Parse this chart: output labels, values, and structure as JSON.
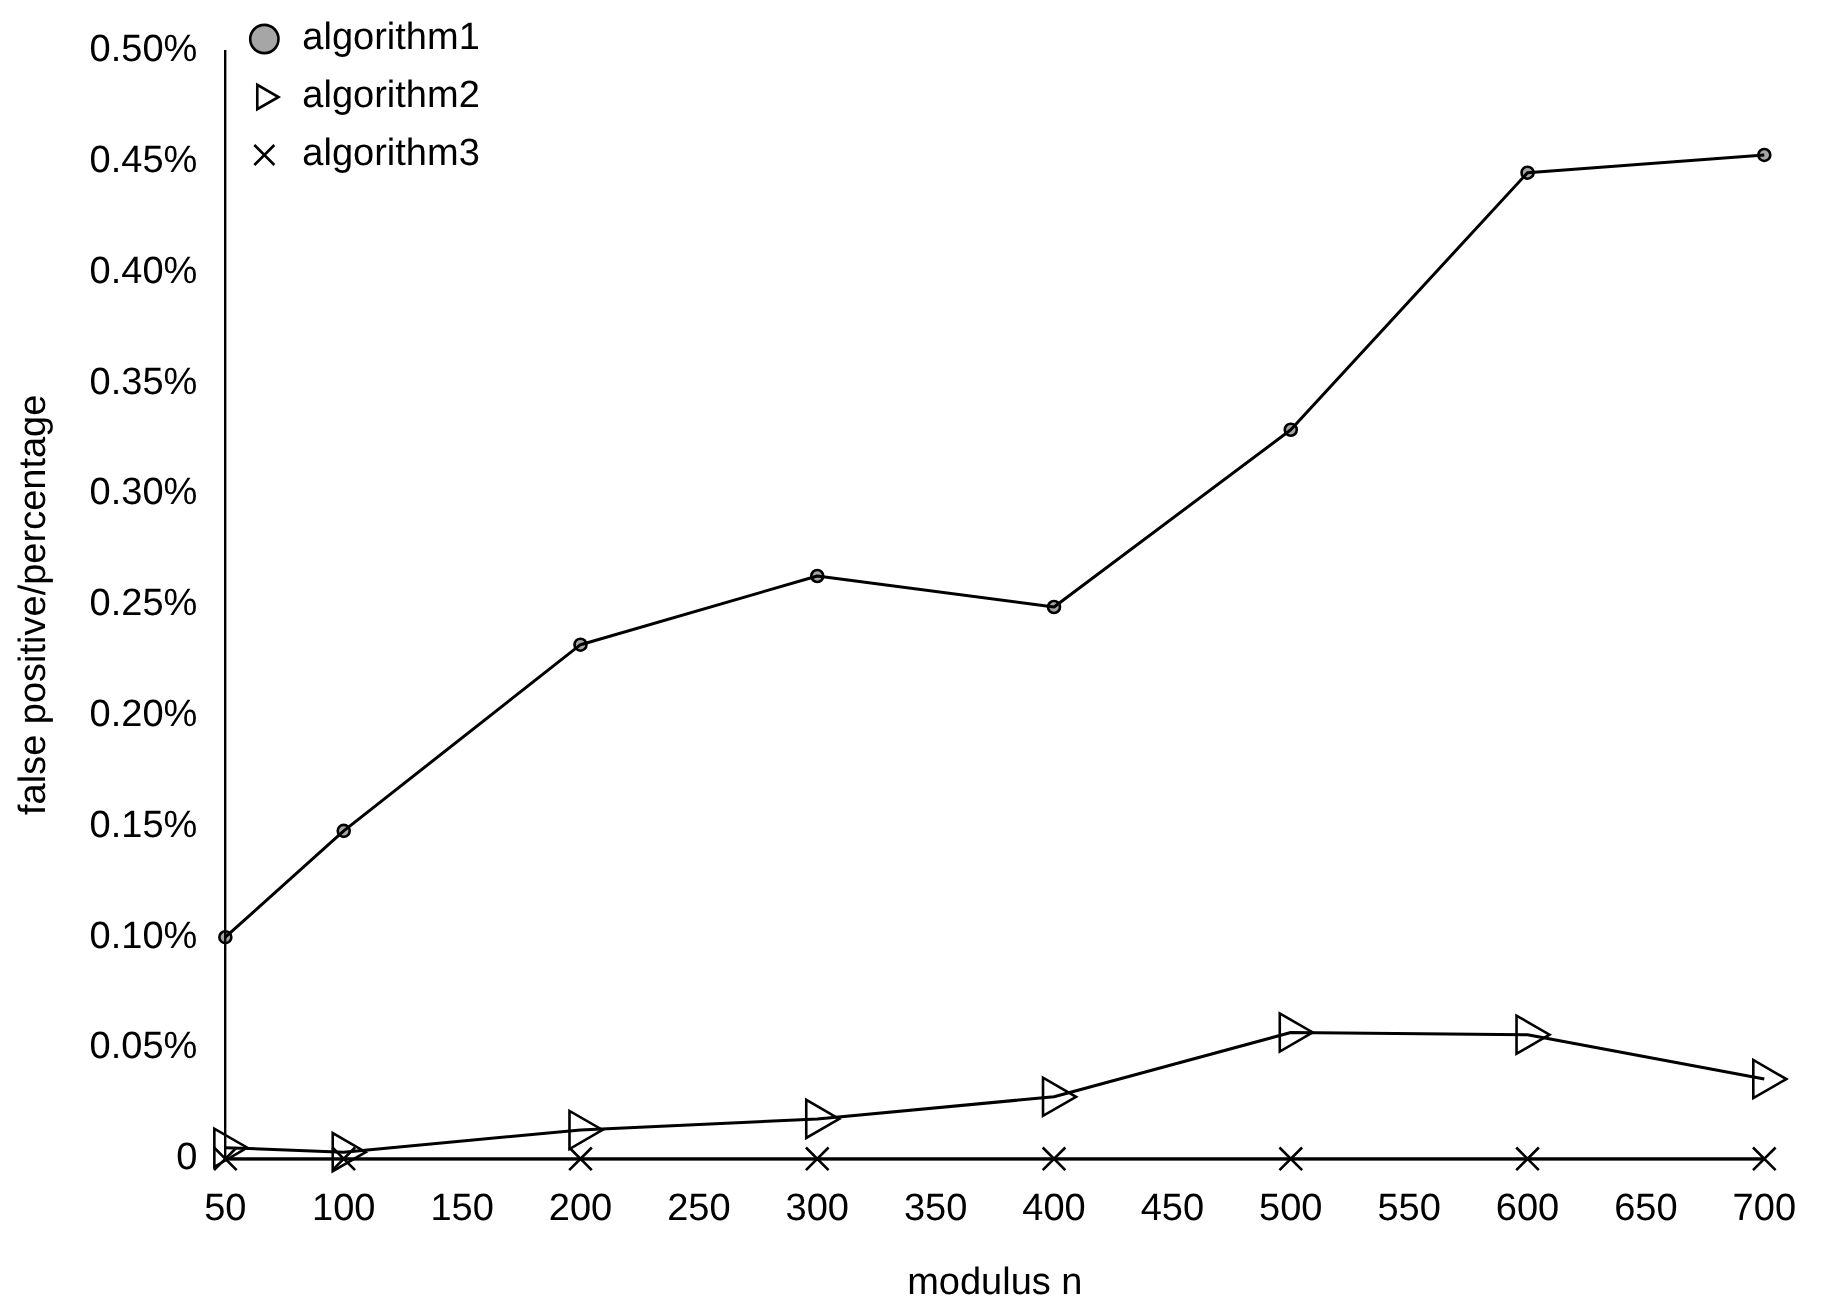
{
  "chart_data": {
    "type": "line",
    "xlabel": "modulus n",
    "ylabel": "false positive/percentage",
    "x": [
      50,
      100,
      200,
      300,
      400,
      500,
      600,
      700
    ],
    "series": [
      {
        "name": "algorithm1",
        "color": "#000000",
        "marker": "circle",
        "values": [
          0.1,
          0.148,
          0.232,
          0.263,
          0.249,
          0.329,
          0.445,
          0.453
        ]
      },
      {
        "name": "algorithm2",
        "color": "#000000",
        "marker": "triangle",
        "values": [
          0.005,
          0.003,
          0.013,
          0.018,
          0.028,
          0.057,
          0.056,
          0.036
        ]
      },
      {
        "name": "algorithm3",
        "color": "#000000",
        "marker": "cross",
        "values": [
          0,
          0,
          0,
          0,
          0,
          0,
          0,
          0
        ]
      }
    ],
    "xlim": [
      50,
      700
    ],
    "xticks": [
      50,
      100,
      150,
      200,
      250,
      300,
      350,
      400,
      450,
      500,
      550,
      600,
      650,
      700
    ],
    "ylim": [
      0,
      0.5
    ],
    "yticks": [
      0,
      {
        "value": 0.05,
        "label": "0.05%"
      },
      {
        "value": 0.1,
        "label": "0.10%"
      },
      {
        "value": 0.15,
        "label": "0.15%"
      },
      {
        "value": 0.2,
        "label": "0.20%"
      },
      {
        "value": 0.25,
        "label": "0.25%"
      },
      {
        "value": 0.3,
        "label": "0.30%"
      },
      {
        "value": 0.35,
        "label": "0.35%"
      },
      {
        "value": 0.4,
        "label": "0.40%"
      },
      {
        "value": 0.45,
        "label": "0.45%"
      },
      {
        "value": 0.5,
        "label": "0.50%"
      }
    ],
    "grid": false,
    "legend": "top left",
    "line_style": "solid"
  }
}
